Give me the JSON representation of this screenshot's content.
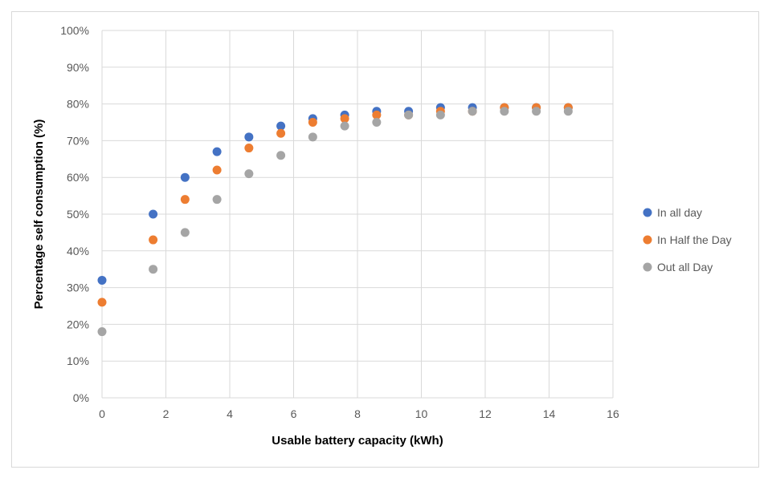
{
  "chart_data": {
    "type": "scatter",
    "title": "",
    "xlabel": "Usable battery capacity (kWh)",
    "ylabel": "Percentage self consumption (%)",
    "xlim": [
      0,
      16
    ],
    "ylim": [
      0,
      100
    ],
    "x_ticks": [
      "0",
      "2",
      "4",
      "6",
      "8",
      "10",
      "12",
      "14",
      "16"
    ],
    "y_ticks": [
      "0%",
      "10%",
      "20%",
      "30%",
      "40%",
      "50%",
      "60%",
      "70%",
      "80%",
      "90%",
      "100%"
    ],
    "grid": true,
    "legend_position": "right",
    "series": [
      {
        "name": "In all day",
        "color": "#4472C4",
        "x": [
          0,
          1.6,
          2.6,
          3.6,
          4.6,
          5.6,
          6.6,
          7.6,
          8.6,
          9.6,
          10.6,
          11.6,
          12.6,
          13.6,
          14.6
        ],
        "y": [
          32,
          50,
          60,
          67,
          71,
          74,
          76,
          77,
          78,
          78,
          79,
          79,
          79,
          79,
          79
        ]
      },
      {
        "name": "In Half the Day",
        "color": "#ED7D31",
        "x": [
          0,
          1.6,
          2.6,
          3.6,
          4.6,
          5.6,
          6.6,
          7.6,
          8.6,
          9.6,
          10.6,
          11.6,
          12.6,
          13.6,
          14.6
        ],
        "y": [
          26,
          43,
          54,
          62,
          68,
          72,
          75,
          76,
          77,
          77,
          78,
          78,
          79,
          79,
          79
        ]
      },
      {
        "name": "Out all Day",
        "color": "#A5A5A5",
        "x": [
          0,
          1.6,
          2.6,
          3.6,
          4.6,
          5.6,
          6.6,
          7.6,
          8.6,
          9.6,
          10.6,
          11.6,
          12.6,
          13.6,
          14.6
        ],
        "y": [
          18,
          35,
          45,
          54,
          61,
          66,
          71,
          74,
          75,
          77,
          77,
          78,
          78,
          78,
          78
        ]
      }
    ]
  }
}
